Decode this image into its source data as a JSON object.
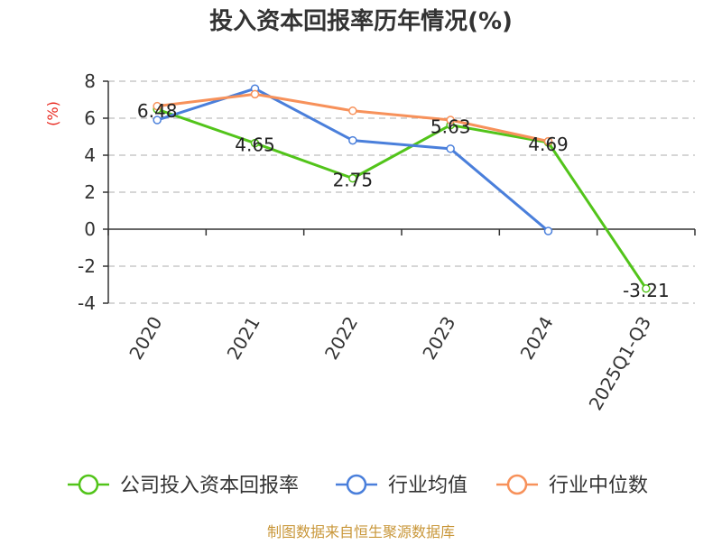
{
  "chart_data": {
    "type": "line",
    "title": "投入资本回报率历年情况(%)",
    "ylabel": "(%)",
    "xlabel": "",
    "categories": [
      "2020",
      "2021",
      "2022",
      "2023",
      "2024",
      "2025Q1-Q3"
    ],
    "ylim": [
      -4,
      8
    ],
    "yticks": [
      -4,
      -2,
      0,
      2,
      4,
      6,
      8
    ],
    "grid": true,
    "legend_position": "bottom",
    "series": [
      {
        "name": "公司投入资本回报率",
        "color": "#52c41a",
        "values": [
          6.48,
          4.65,
          2.75,
          5.63,
          4.69,
          -3.21
        ],
        "labels": [
          "6.48",
          "4.65",
          "2.75",
          "5.63",
          "4.69",
          "-3.21"
        ]
      },
      {
        "name": "行业均值",
        "color": "#4a7fdb",
        "values": [
          5.9,
          7.6,
          4.8,
          4.35,
          -0.1,
          null
        ]
      },
      {
        "name": "行业中位数",
        "color": "#f7915a",
        "values": [
          6.65,
          7.3,
          6.4,
          5.9,
          4.75,
          null
        ]
      }
    ]
  },
  "footer": {
    "source": "制图数据来自恒生聚源数据库",
    "color": "#c9973a"
  }
}
